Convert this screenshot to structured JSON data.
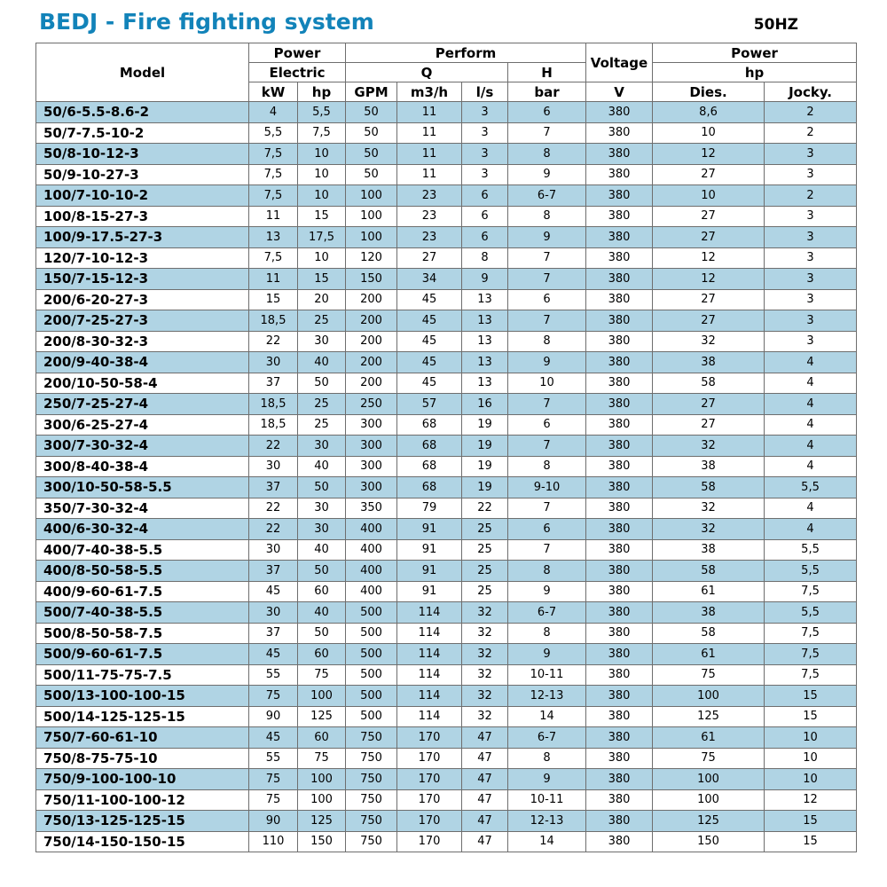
{
  "header": {
    "title": "BEDJ - Fire fighting system",
    "frequency": "50HZ"
  },
  "colors": {
    "title_accent": "#1283b9",
    "row_alt": "#b0d4e4",
    "border": "#6e6e6e"
  },
  "table": {
    "header": {
      "model": "Model",
      "power_electric_top": "Power",
      "power_electric_bottom": "Electric",
      "perform": "Perform",
      "q": "Q",
      "h": "H",
      "voltage": "Voltage",
      "power_hp_top": "Power",
      "power_hp_bottom": "hp",
      "units": [
        "kW",
        "hp",
        "GPM",
        "m3/h",
        "l/s",
        "bar",
        "V",
        "Dies.",
        "Jocky."
      ]
    },
    "rows": [
      [
        "50/6-5.5-8.6-2",
        "4",
        "5,5",
        "50",
        "11",
        "3",
        "6",
        "380",
        "8,6",
        "2"
      ],
      [
        "50/7-7.5-10-2",
        "5,5",
        "7,5",
        "50",
        "11",
        "3",
        "7",
        "380",
        "10",
        "2"
      ],
      [
        "50/8-10-12-3",
        "7,5",
        "10",
        "50",
        "11",
        "3",
        "8",
        "380",
        "12",
        "3"
      ],
      [
        "50/9-10-27-3",
        "7,5",
        "10",
        "50",
        "11",
        "3",
        "9",
        "380",
        "27",
        "3"
      ],
      [
        "100/7-10-10-2",
        "7,5",
        "10",
        "100",
        "23",
        "6",
        "6-7",
        "380",
        "10",
        "2"
      ],
      [
        "100/8-15-27-3",
        "11",
        "15",
        "100",
        "23",
        "6",
        "8",
        "380",
        "27",
        "3"
      ],
      [
        "100/9-17.5-27-3",
        "13",
        "17,5",
        "100",
        "23",
        "6",
        "9",
        "380",
        "27",
        "3"
      ],
      [
        "120/7-10-12-3",
        "7,5",
        "10",
        "120",
        "27",
        "8",
        "7",
        "380",
        "12",
        "3"
      ],
      [
        "150/7-15-12-3",
        "11",
        "15",
        "150",
        "34",
        "9",
        "7",
        "380",
        "12",
        "3"
      ],
      [
        "200/6-20-27-3",
        "15",
        "20",
        "200",
        "45",
        "13",
        "6",
        "380",
        "27",
        "3"
      ],
      [
        "200/7-25-27-3",
        "18,5",
        "25",
        "200",
        "45",
        "13",
        "7",
        "380",
        "27",
        "3"
      ],
      [
        "200/8-30-32-3",
        "22",
        "30",
        "200",
        "45",
        "13",
        "8",
        "380",
        "32",
        "3"
      ],
      [
        "200/9-40-38-4",
        "30",
        "40",
        "200",
        "45",
        "13",
        "9",
        "380",
        "38",
        "4"
      ],
      [
        "200/10-50-58-4",
        "37",
        "50",
        "200",
        "45",
        "13",
        "10",
        "380",
        "58",
        "4"
      ],
      [
        "250/7-25-27-4",
        "18,5",
        "25",
        "250",
        "57",
        "16",
        "7",
        "380",
        "27",
        "4"
      ],
      [
        "300/6-25-27-4",
        "18,5",
        "25",
        "300",
        "68",
        "19",
        "6",
        "380",
        "27",
        "4"
      ],
      [
        "300/7-30-32-4",
        "22",
        "30",
        "300",
        "68",
        "19",
        "7",
        "380",
        "32",
        "4"
      ],
      [
        "300/8-40-38-4",
        "30",
        "40",
        "300",
        "68",
        "19",
        "8",
        "380",
        "38",
        "4"
      ],
      [
        "300/10-50-58-5.5",
        "37",
        "50",
        "300",
        "68",
        "19",
        "9-10",
        "380",
        "58",
        "5,5"
      ],
      [
        "350/7-30-32-4",
        "22",
        "30",
        "350",
        "79",
        "22",
        "7",
        "380",
        "32",
        "4"
      ],
      [
        "400/6-30-32-4",
        "22",
        "30",
        "400",
        "91",
        "25",
        "6",
        "380",
        "32",
        "4"
      ],
      [
        "400/7-40-38-5.5",
        "30",
        "40",
        "400",
        "91",
        "25",
        "7",
        "380",
        "38",
        "5,5"
      ],
      [
        "400/8-50-58-5.5",
        "37",
        "50",
        "400",
        "91",
        "25",
        "8",
        "380",
        "58",
        "5,5"
      ],
      [
        "400/9-60-61-7.5",
        "45",
        "60",
        "400",
        "91",
        "25",
        "9",
        "380",
        "61",
        "7,5"
      ],
      [
        "500/7-40-38-5.5",
        "30",
        "40",
        "500",
        "114",
        "32",
        "6-7",
        "380",
        "38",
        "5,5"
      ],
      [
        "500/8-50-58-7.5",
        "37",
        "50",
        "500",
        "114",
        "32",
        "8",
        "380",
        "58",
        "7,5"
      ],
      [
        "500/9-60-61-7.5",
        "45",
        "60",
        "500",
        "114",
        "32",
        "9",
        "380",
        "61",
        "7,5"
      ],
      [
        "500/11-75-75-7.5",
        "55",
        "75",
        "500",
        "114",
        "32",
        "10-11",
        "380",
        "75",
        "7,5"
      ],
      [
        "500/13-100-100-15",
        "75",
        "100",
        "500",
        "114",
        "32",
        "12-13",
        "380",
        "100",
        "15"
      ],
      [
        "500/14-125-125-15",
        "90",
        "125",
        "500",
        "114",
        "32",
        "14",
        "380",
        "125",
        "15"
      ],
      [
        "750/7-60-61-10",
        "45",
        "60",
        "750",
        "170",
        "47",
        "6-7",
        "380",
        "61",
        "10"
      ],
      [
        "750/8-75-75-10",
        "55",
        "75",
        "750",
        "170",
        "47",
        "8",
        "380",
        "75",
        "10"
      ],
      [
        "750/9-100-100-10",
        "75",
        "100",
        "750",
        "170",
        "47",
        "9",
        "380",
        "100",
        "10"
      ],
      [
        "750/11-100-100-12",
        "75",
        "100",
        "750",
        "170",
        "47",
        "10-11",
        "380",
        "100",
        "12"
      ],
      [
        "750/13-125-125-15",
        "90",
        "125",
        "750",
        "170",
        "47",
        "12-13",
        "380",
        "125",
        "15"
      ],
      [
        "750/14-150-150-15",
        "110",
        "150",
        "750",
        "170",
        "47",
        "14",
        "380",
        "150",
        "15"
      ]
    ]
  }
}
